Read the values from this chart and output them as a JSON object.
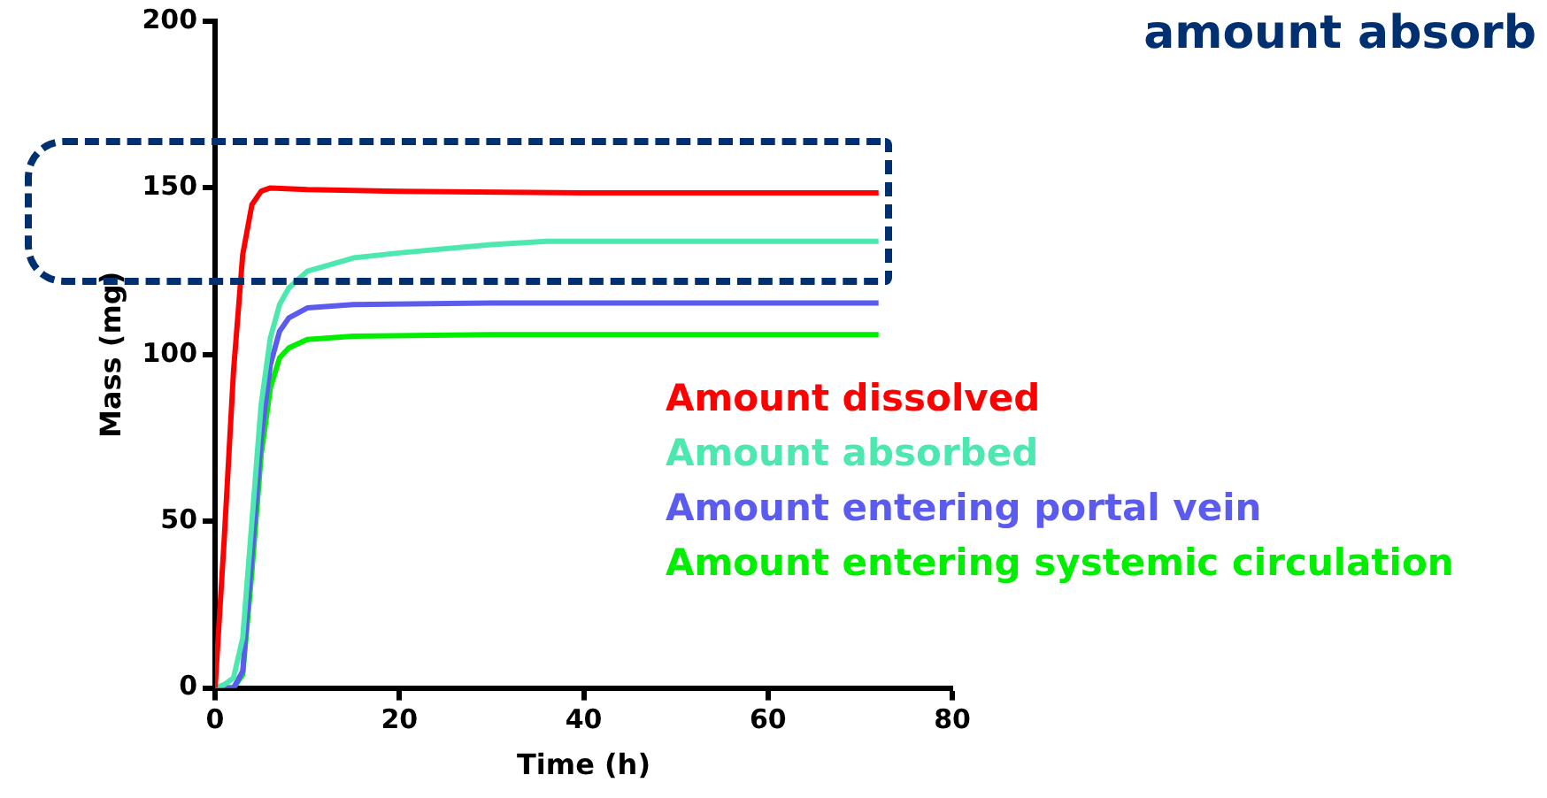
{
  "chart_data": {
    "type": "line",
    "xlabel": "Time (h)",
    "ylabel": "Mass (mg)",
    "xlim": [
      0,
      80
    ],
    "xticks": [
      0,
      20,
      40,
      60,
      80
    ],
    "ylim": [
      0,
      200
    ],
    "yticks": [
      0,
      50,
      100,
      150,
      200
    ],
    "grid": false,
    "legend": "right",
    "marker": "none",
    "line_style": "solid",
    "annotations": [
      "amount absorb"
    ],
    "series": [
      {
        "name": "Amount dissolved",
        "color": "#ff0000",
        "x": [
          0,
          1,
          2,
          3,
          4,
          5,
          6,
          10,
          20,
          40,
          72
        ],
        "values": [
          0,
          45,
          95,
          130,
          145,
          149,
          150,
          149.5,
          149,
          148.5,
          148.5
        ]
      },
      {
        "name": "Amount absorbed",
        "color": "#4de8b0",
        "x": [
          0,
          1,
          2,
          3,
          4,
          5,
          6,
          7,
          8,
          10,
          15,
          20,
          30,
          36,
          72
        ],
        "values": [
          0,
          1,
          3,
          15,
          50,
          85,
          105,
          115,
          120,
          125,
          129,
          130.5,
          133,
          134,
          134
        ]
      },
      {
        "name": "Amount entering portal vein",
        "color": "#5b5bef",
        "x": [
          0,
          2,
          3,
          4,
          5,
          6,
          7,
          8,
          10,
          15,
          30,
          72
        ],
        "values": [
          0,
          0,
          5,
          40,
          75,
          97,
          107,
          111,
          114,
          115,
          115.5,
          115.5
        ]
      },
      {
        "name": "Amount entering systemic circulation",
        "color": "#00ee00",
        "x": [
          0,
          2,
          3,
          4,
          5,
          6,
          7,
          8,
          10,
          15,
          30,
          72
        ],
        "values": [
          0,
          0,
          4,
          35,
          70,
          90,
          99,
          102,
          104.5,
          105.5,
          106,
          106
        ]
      }
    ]
  }
}
